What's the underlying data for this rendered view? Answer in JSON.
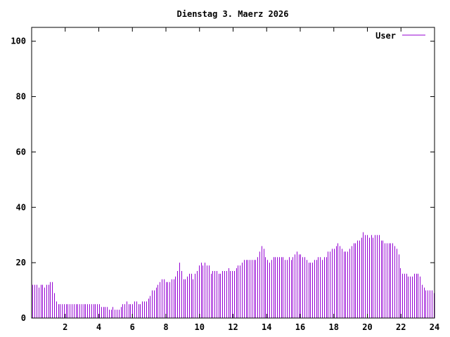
{
  "chart_data": {
    "type": "bar",
    "title": "Dienstag 3. Maerz 2026",
    "xlabel": "",
    "ylabel": "",
    "xlim": [
      0,
      24
    ],
    "ylim": [
      0,
      105
    ],
    "x_ticks": [
      "2",
      "4",
      "6",
      "8",
      "10",
      "12",
      "14",
      "16",
      "18",
      "20",
      "22",
      "24"
    ],
    "y_ticks": [
      "0",
      "20",
      "40",
      "60",
      "80",
      "100"
    ],
    "legend": "top-right",
    "grid": false,
    "bar_color": "#9400d3",
    "series": [
      {
        "name": "User",
        "values": [
          12,
          12,
          12,
          11,
          12,
          12,
          11,
          12,
          12,
          13,
          13,
          9,
          6,
          5,
          5,
          5,
          5,
          5,
          5,
          5,
          5,
          5,
          5,
          5,
          5,
          5,
          5,
          5,
          5,
          5,
          5,
          5,
          5,
          5,
          5,
          4,
          4,
          4,
          4,
          3,
          3,
          4,
          3,
          3,
          3,
          4,
          5,
          5,
          6,
          5,
          5,
          5,
          6,
          6,
          5,
          5,
          6,
          6,
          6,
          7,
          8,
          10,
          10,
          11,
          12,
          13,
          14,
          14,
          13,
          13,
          13,
          14,
          14,
          15,
          17,
          20,
          17,
          14,
          14,
          15,
          16,
          16,
          14,
          16,
          17,
          19,
          20,
          19,
          20,
          19,
          19,
          16,
          17,
          17,
          17,
          16,
          16,
          17,
          17,
          17,
          18,
          17,
          17,
          17,
          18,
          19,
          19,
          20,
          21,
          21,
          21,
          21,
          21,
          21,
          21,
          22,
          24,
          26,
          25,
          22,
          21,
          20,
          21,
          22,
          22,
          22,
          22,
          22,
          22,
          21,
          21,
          22,
          21,
          22,
          23,
          24,
          23,
          23,
          22,
          22,
          21,
          20,
          20,
          20,
          21,
          21,
          22,
          22,
          21,
          22,
          22,
          24,
          24,
          25,
          25,
          26,
          27,
          26,
          25,
          24,
          24,
          24,
          25,
          26,
          27,
          27,
          28,
          28,
          29,
          31,
          30,
          30,
          29,
          30,
          29,
          30,
          30,
          30,
          28,
          28,
          27,
          27,
          27,
          27,
          27,
          26,
          25,
          23,
          18,
          16,
          16,
          16,
          15,
          15,
          15,
          16,
          16,
          16,
          15,
          12,
          11,
          10,
          10,
          10,
          10,
          9
        ]
      }
    ]
  }
}
